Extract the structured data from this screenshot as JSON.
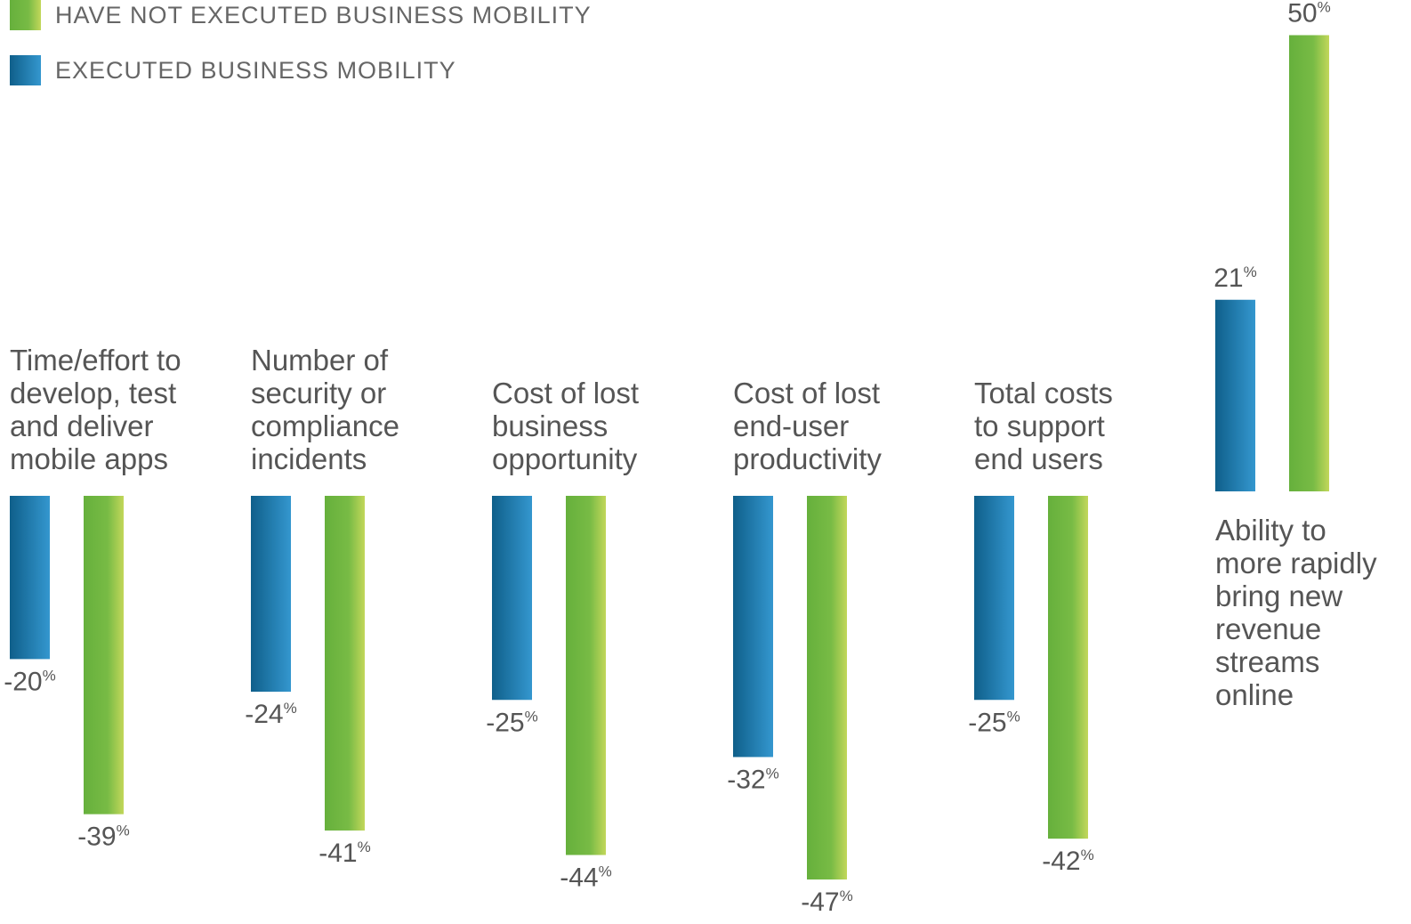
{
  "chart_data": {
    "type": "bar",
    "legend": [
      {
        "key": "not_executed",
        "label": "HAVE NOT EXECUTED BUSINESS MOBILITY",
        "color": "#72b843"
      },
      {
        "key": "executed",
        "label": "EXECUTED BUSINESS MOBILITY",
        "color": "#1d86bf"
      }
    ],
    "categories": [
      "Time/effort to develop, test and deliver mobile apps",
      "Number of security or compliance incidents",
      "Cost of lost business opportunity",
      "Cost of lost end-user productivity",
      "Total costs to support end users",
      "Ability to more rapidly bring new revenue streams online"
    ],
    "category_lines": [
      [
        "Time/effort to",
        "develop, test",
        "and deliver",
        "mobile apps"
      ],
      [
        "Number of",
        "security or",
        "compliance",
        "incidents"
      ],
      [
        "Cost of lost",
        "business",
        "opportunity"
      ],
      [
        "Cost of lost",
        "end-user",
        "productivity"
      ],
      [
        "Total costs",
        "to support",
        "end users"
      ],
      [
        "Ability to",
        "more rapidly",
        "bring new",
        "revenue",
        "streams",
        "online"
      ]
    ],
    "series": [
      {
        "name": "EXECUTED BUSINESS MOBILITY",
        "key": "executed",
        "values": [
          -20,
          -24,
          -25,
          -32,
          -25,
          21
        ]
      },
      {
        "name": "HAVE NOT EXECUTED BUSINESS MOBILITY",
        "key": "not_executed",
        "values": [
          -39,
          -41,
          -44,
          -47,
          -42,
          50
        ]
      }
    ],
    "value_labels": {
      "executed": [
        "-20",
        "-24",
        "-25",
        "-32",
        "-25",
        "21"
      ],
      "not_executed": [
        "-39",
        "-41",
        "-44",
        "-47",
        "-42",
        "50"
      ]
    },
    "unit_suffix": "%",
    "grid": false,
    "legend_position": "top-left",
    "colors": {
      "executed_dark": "#0f5f8a",
      "executed_light": "#3497cf",
      "not_executed_dark": "#66b03c",
      "not_executed_light": "#c2d75a"
    }
  }
}
